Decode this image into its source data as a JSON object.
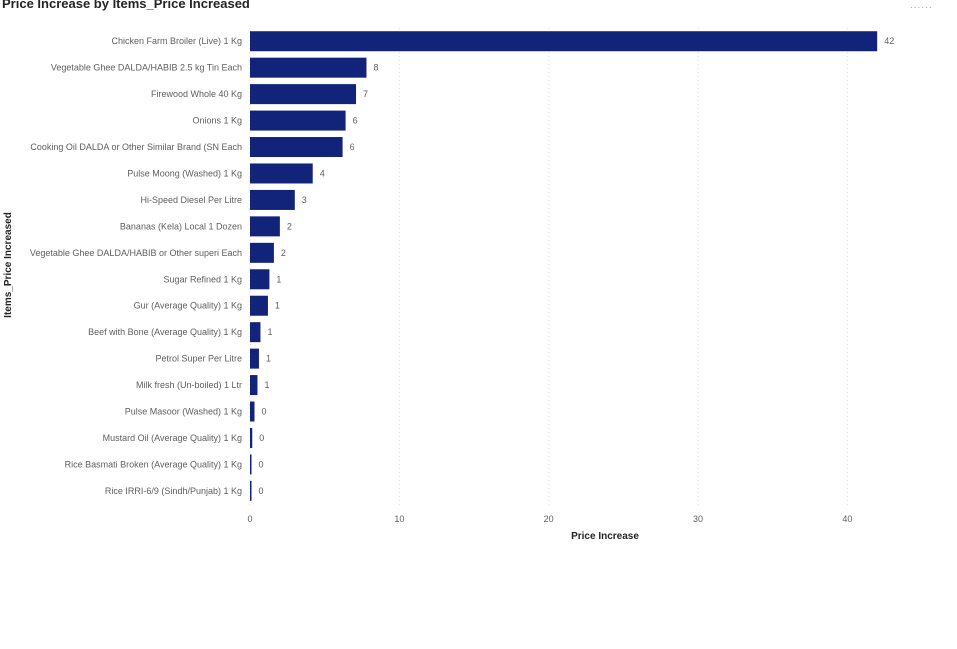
{
  "visual": {
    "title": "Price Increase by Items_Price Increased",
    "corner_mark": "......"
  },
  "chart_data": {
    "type": "bar",
    "orientation": "horizontal",
    "title": "Price Increase by Items_Price Increased",
    "xlabel": "Price Increase",
    "ylabel": "Items_Price Increased",
    "xlim": [
      0,
      45
    ],
    "xticks": [
      0,
      10,
      20,
      30,
      40
    ],
    "grid": true,
    "bar_color": "#12237a",
    "categories": [
      "Chicken Farm Broiler (Live) 1 Kg",
      "Vegetable Ghee DALDA/HABIB 2.5 kg Tin Each",
      "Firewood Whole 40 Kg",
      "Onions 1 Kg",
      "Cooking Oil DALDA or Other Similar Brand (SN Each",
      "Pulse Moong (Washed) 1 Kg",
      "Hi-Speed Diesel Per Litre",
      "Bananas (Kela) Local 1 Dozen",
      "Vegetable Ghee DALDA/HABIB or Other superi Each",
      "Sugar Refined 1 Kg",
      "Gur (Average Quality) 1 Kg",
      "Beef with Bone (Average Quality) 1 Kg",
      "Petrol Super Per Litre",
      "Milk fresh (Un-boiled) 1 Ltr",
      "Pulse Masoor (Washed) 1 Kg",
      "Mustard Oil (Average Quality) 1 Kg",
      "Rice Basmati Broken (Average Quality) 1 Kg",
      "Rice IRRI-6/9 (Sindh/Punjab) 1 Kg"
    ],
    "values": [
      42,
      7.8,
      7.1,
      6.4,
      6.2,
      4.2,
      3.0,
      2.0,
      1.6,
      1.3,
      1.2,
      0.7,
      0.6,
      0.5,
      0.3,
      0.15,
      0.1,
      0.1
    ],
    "data_labels": [
      "42",
      "8",
      "7",
      "6",
      "6",
      "4",
      "3",
      "2",
      "2",
      "1",
      "1",
      "1",
      "1",
      "1",
      "0",
      "0",
      "0",
      "0"
    ]
  }
}
